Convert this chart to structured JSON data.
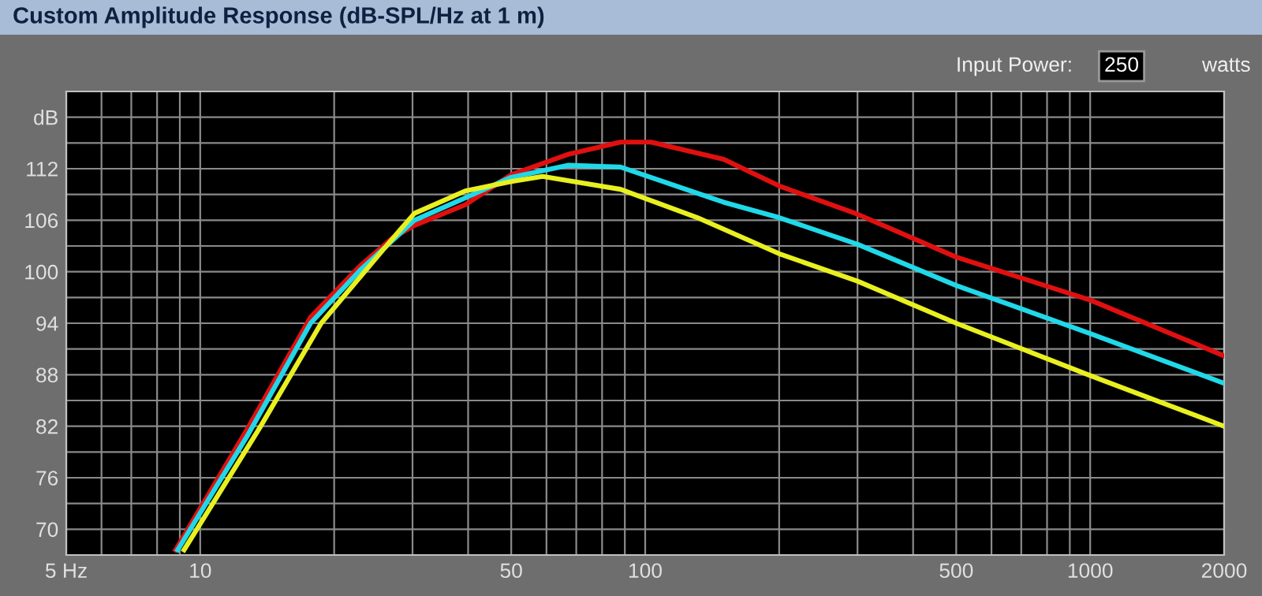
{
  "chart_data": {
    "type": "line",
    "title": "Custom Amplitude Response (dB-SPL/Hz at 1 m)",
    "annotations": [
      "Input Power:",
      "250",
      "watts"
    ],
    "log": "x",
    "grid": true,
    "marker": "none",
    "line_style": "solid",
    "legend": false,
    "xlim": [
      5,
      2000
    ],
    "xticks": [
      {
        "value": 5,
        "label": "5 Hz"
      },
      {
        "value": 6,
        "label": null
      },
      {
        "value": 7,
        "label": null
      },
      {
        "value": 8,
        "label": null
      },
      {
        "value": 9,
        "label": null
      },
      10,
      {
        "value": 20,
        "label": null
      },
      {
        "value": 30,
        "label": null
      },
      {
        "value": 40,
        "label": null
      },
      50,
      {
        "value": 60,
        "label": null
      },
      {
        "value": 70,
        "label": null
      },
      {
        "value": 80,
        "label": null
      },
      {
        "value": 90,
        "label": null
      },
      100,
      {
        "value": 200,
        "label": null
      },
      {
        "value": 300,
        "label": null
      },
      {
        "value": 400,
        "label": null
      },
      500,
      {
        "value": 600,
        "label": null
      },
      {
        "value": 700,
        "label": null
      },
      {
        "value": 800,
        "label": null
      },
      {
        "value": 900,
        "label": null
      },
      1000,
      2000
    ],
    "ylim": [
      67,
      121
    ],
    "yticks": [
      70,
      {
        "value": 73,
        "label": null
      },
      76,
      {
        "value": 79,
        "label": null
      },
      82,
      {
        "value": 85,
        "label": null
      },
      88,
      {
        "value": 91,
        "label": null
      },
      94,
      {
        "value": 97,
        "label": null
      },
      100,
      {
        "value": 103,
        "label": null
      },
      106,
      {
        "value": 109,
        "label": null
      },
      112,
      {
        "value": 115,
        "label": null
      },
      {
        "value": 118,
        "label": "dB"
      }
    ],
    "series": [
      {
        "color": "#e01010",
        "x": [
          8.8,
          12.8,
          17.7,
          23,
          27,
          30.3,
          39.4,
          50,
          67.4,
          88,
          103,
          150,
          200,
          300,
          500,
          1000,
          2000
        ],
        "values": [
          67.6,
          81.8,
          94.7,
          100.8,
          103.9,
          105.4,
          107.8,
          111.3,
          113.7,
          115.1,
          115.1,
          113.1,
          110.0,
          106.7,
          101.7,
          96.7,
          90.2
        ]
      },
      {
        "color": "#20d8e8",
        "x": [
          8.9,
          12.8,
          17.7,
          23,
          30.3,
          39.4,
          50,
          67,
          88,
          150,
          200,
          300,
          500,
          1000,
          2000
        ],
        "values": [
          67.6,
          81.0,
          94.0,
          100.3,
          106.0,
          108.6,
          111.0,
          112.4,
          112.2,
          108.1,
          106.3,
          103.2,
          98.4,
          92.8,
          87.0
        ]
      },
      {
        "color": "#e8f020",
        "x": [
          9.2,
          13.6,
          18.7,
          25.8,
          30.3,
          39.4,
          50,
          58.8,
          88,
          131,
          200,
          300,
          500,
          1000,
          2000
        ],
        "values": [
          67.6,
          81.8,
          94.0,
          102.6,
          106.8,
          109.4,
          110.5,
          111.1,
          109.6,
          106.3,
          102.1,
          98.9,
          94.0,
          87.9,
          82.0
        ]
      }
    ]
  }
}
